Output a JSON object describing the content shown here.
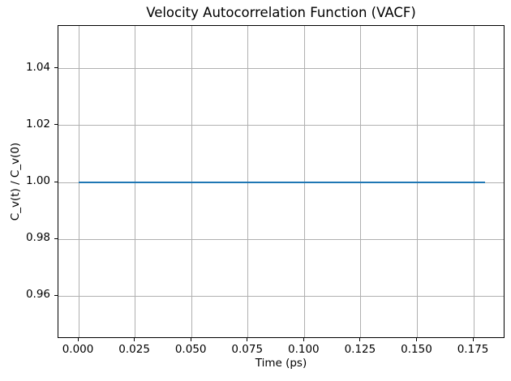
{
  "chart_data": {
    "type": "line",
    "title": "Velocity Autocorrelation Function (VACF)",
    "xlabel": "Time (ps)",
    "ylabel": "C_v(t) / C_v(0)",
    "xlim": [
      -0.009,
      0.189
    ],
    "ylim": [
      0.945,
      1.055
    ],
    "xticks": [
      0.0,
      0.025,
      0.05,
      0.075,
      0.1,
      0.125,
      0.15,
      0.175
    ],
    "xtick_labels": [
      "0.000",
      "0.025",
      "0.050",
      "0.075",
      "0.100",
      "0.125",
      "0.150",
      "0.175"
    ],
    "yticks": [
      0.96,
      0.98,
      1.0,
      1.02,
      1.04
    ],
    "ytick_labels": [
      "0.96",
      "0.98",
      "1.00",
      "1.02",
      "1.04"
    ],
    "grid": true,
    "legend_position": "none",
    "series": [
      {
        "name": "VACF",
        "color": "#1f77b4",
        "x": [
          0.0,
          0.18
        ],
        "y": [
          1.0,
          1.0
        ],
        "constant_value": 1.0
      }
    ]
  },
  "colors": {
    "background": "#ffffff",
    "grid": "#b0b0b0",
    "spine": "#000000",
    "text": "#000000",
    "line": "#1f77b4"
  }
}
